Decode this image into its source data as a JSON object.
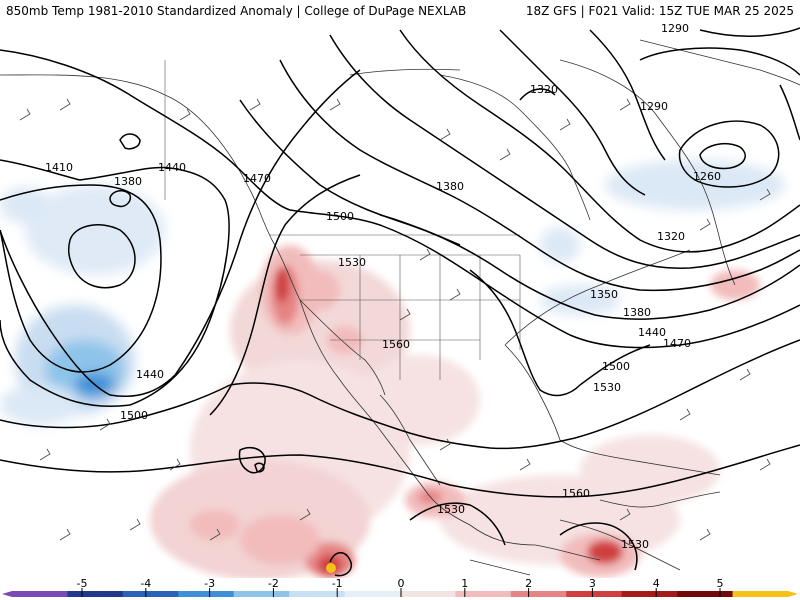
{
  "title": {
    "left": "850mb Temp 1981-2010 Standardized Anomaly | College of DuPage NEXLAB",
    "right": "18Z GFS | F021 Valid: 15Z TUE MAR 25 2025"
  },
  "contour_labels": [
    {
      "text": "1290"
    },
    {
      "text": "1320"
    },
    {
      "text": "1290"
    },
    {
      "text": "1260"
    },
    {
      "text": "1410"
    },
    {
      "text": "1380"
    },
    {
      "text": "1440"
    },
    {
      "text": "1470"
    },
    {
      "text": "1380"
    },
    {
      "text": "1500"
    },
    {
      "text": "1530"
    },
    {
      "text": "1320"
    },
    {
      "text": "1350"
    },
    {
      "text": "1380"
    },
    {
      "text": "1440"
    },
    {
      "text": "1470"
    },
    {
      "text": "1560"
    },
    {
      "text": "1500"
    },
    {
      "text": "1530"
    },
    {
      "text": "1440"
    },
    {
      "text": "1500"
    },
    {
      "text": "1560"
    },
    {
      "text": "1530"
    },
    {
      "text": "1530"
    }
  ],
  "colorbar": {
    "ticks": [
      "-5",
      "-4",
      "-3",
      "-2",
      "-1",
      "0",
      "1",
      "2",
      "3",
      "4",
      "5"
    ],
    "colors": [
      "#7a4bb5",
      "#1f3a8a",
      "#2a62b8",
      "#3d8fd6",
      "#8ec3ea",
      "#c8e0f4",
      "#e6eff8",
      "#f3e4e4",
      "#f2bcbc",
      "#e58484",
      "#cf3f3f",
      "#a51a1a",
      "#6e0a0a",
      "#f6c21a"
    ]
  }
}
